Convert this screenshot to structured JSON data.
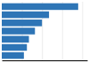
{
  "chart_data": {
    "type": "bar",
    "orientation": "horizontal",
    "categories": [
      null,
      null,
      null,
      null,
      null,
      null,
      null
    ],
    "values": [
      76,
      47,
      40,
      33,
      27,
      25,
      22
    ],
    "color": "#2e75b6",
    "xlim": [
      0,
      85
    ],
    "xticks": [
      20,
      40,
      60,
      80
    ],
    "grid": true,
    "tick_labels": false
  }
}
